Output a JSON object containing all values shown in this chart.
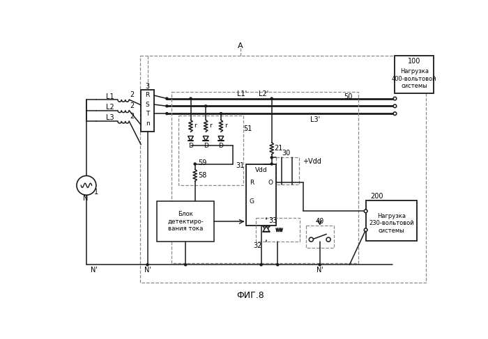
{
  "title": "ФИГ.8",
  "bg_color": "#ffffff",
  "lc": "#1a1a1a",
  "dc": "#888888",
  "fig_width": 7.0,
  "fig_height": 4.87,
  "box100_text": "Нагрузка\n400-вольтовой\nсистемы",
  "box200_text": "Нагрузка\n230-вольтовой\nсистемы",
  "box_curr_text": "Блок\nдетектиро-\nвания тока"
}
